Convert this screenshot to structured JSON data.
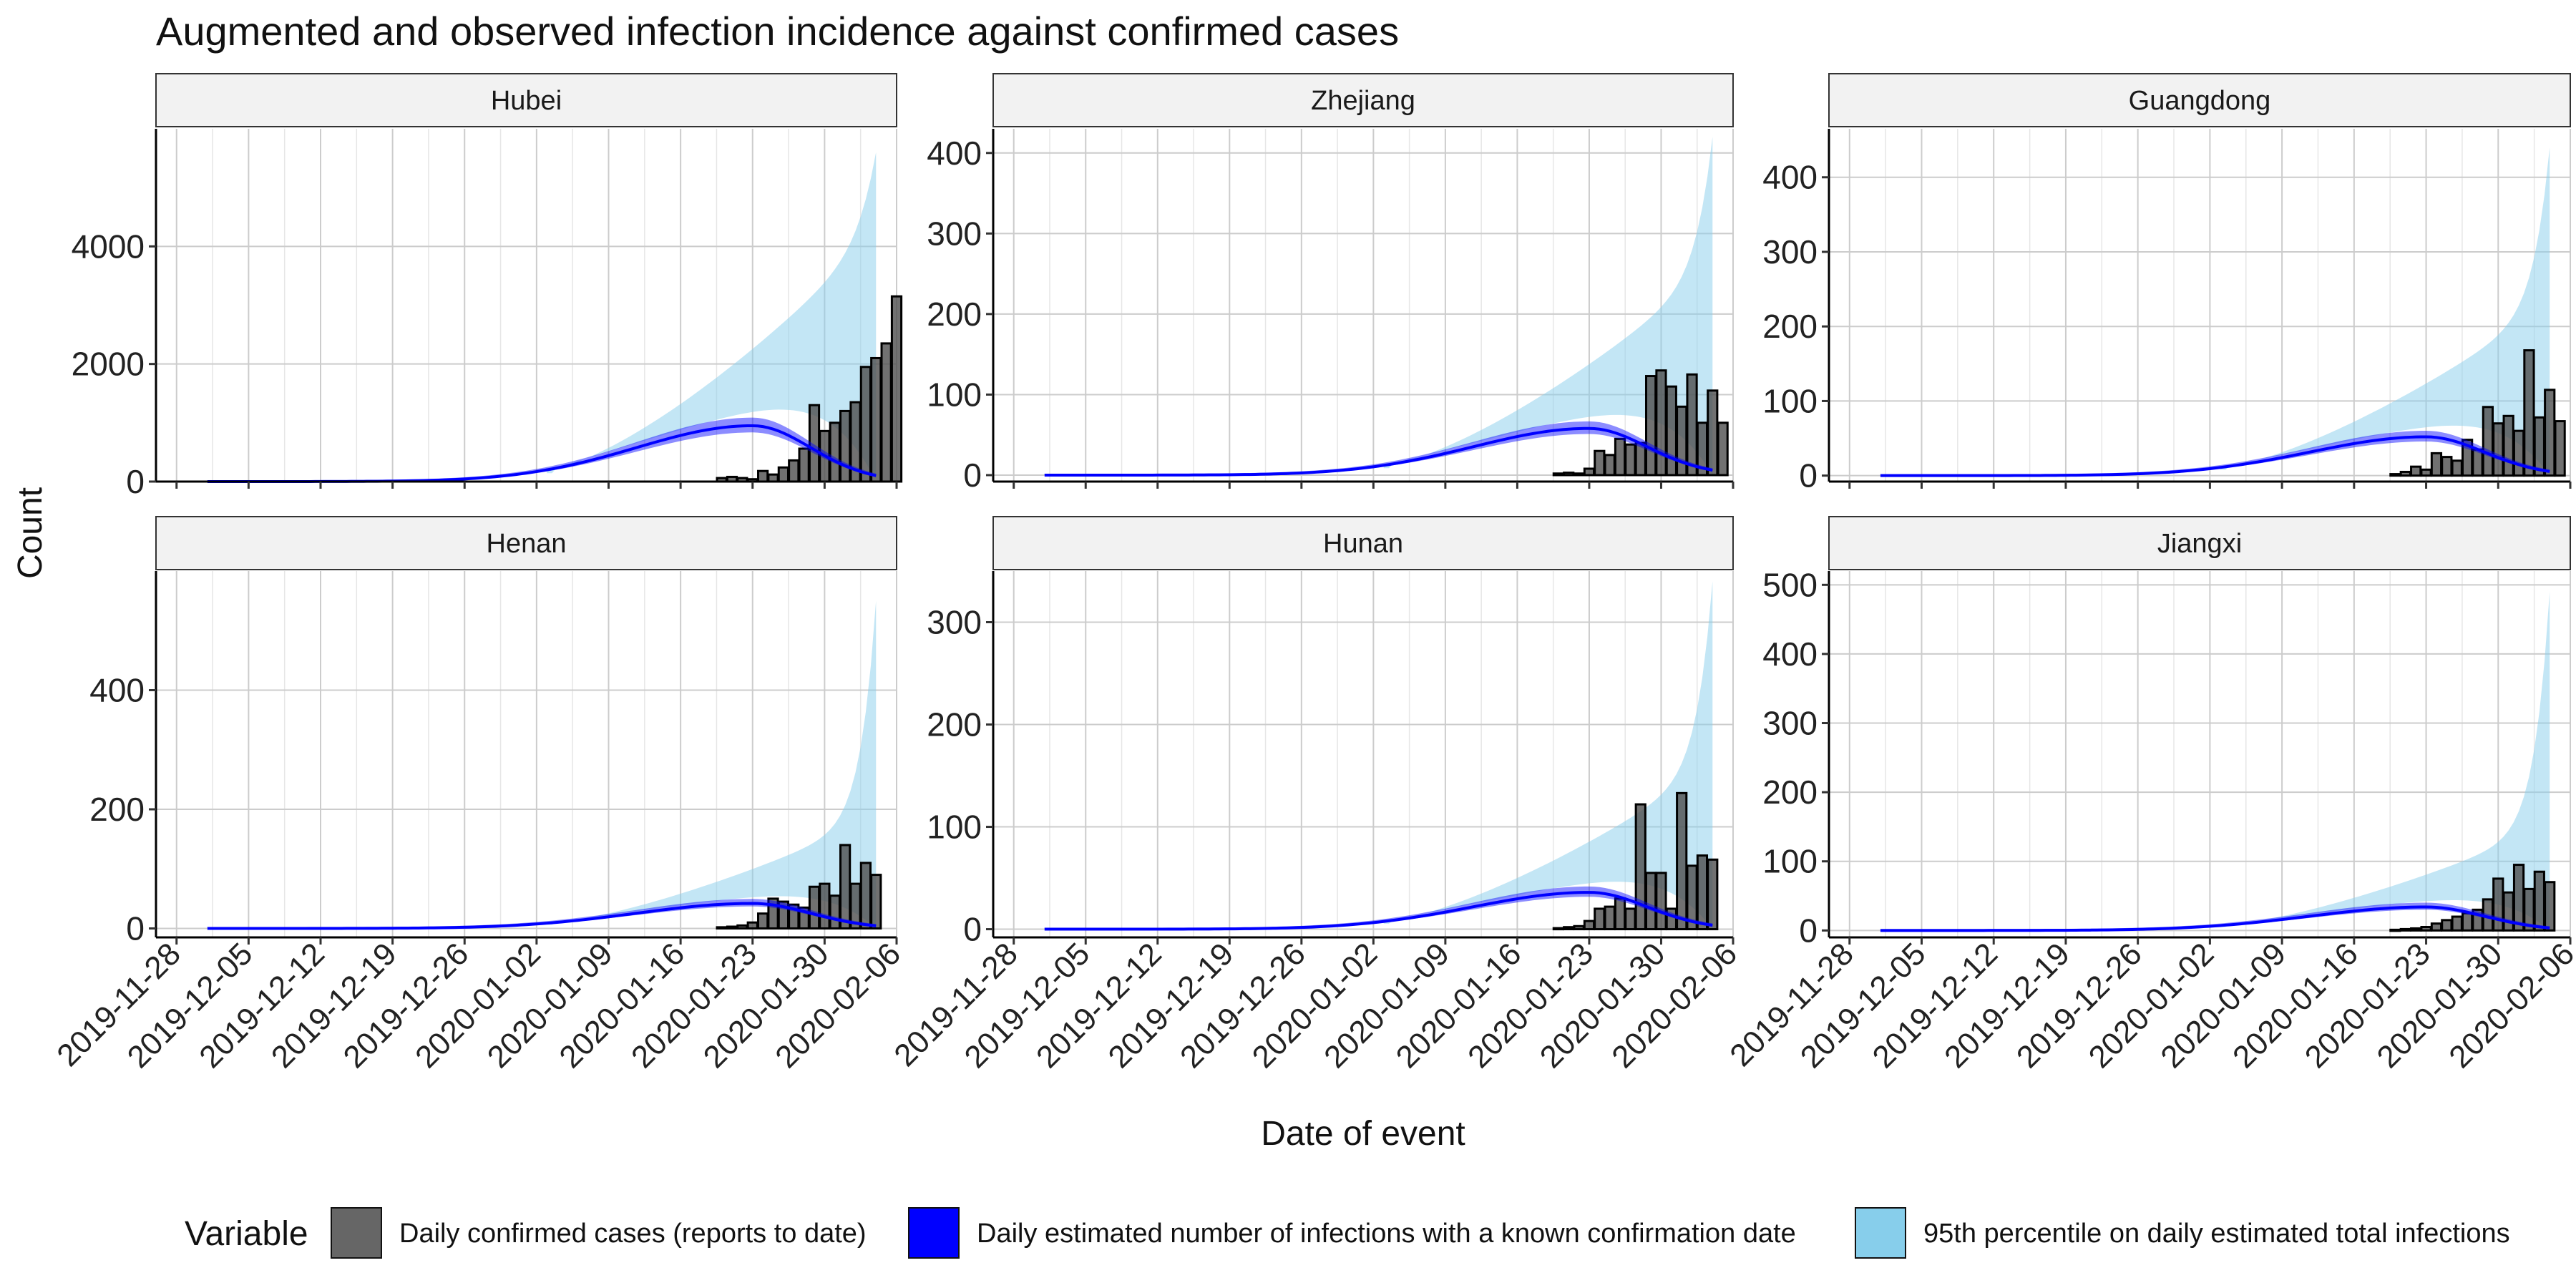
{
  "title": "Augmented and observed infection incidence against confirmed cases",
  "chart_data": {
    "type": "bar",
    "xlabel": "Date of event",
    "ylabel": "Count",
    "x_ticks": [
      "2019-11-28",
      "2019-12-05",
      "2019-12-12",
      "2019-12-19",
      "2019-12-26",
      "2020-01-02",
      "2020-01-09",
      "2020-01-16",
      "2020-01-23",
      "2020-01-30",
      "2020-02-06"
    ],
    "x_range": [
      "2019-11-26",
      "2020-02-06"
    ],
    "grid": true,
    "legend": {
      "title": "Variable",
      "position": "bottom",
      "items": [
        {
          "label": "Daily confirmed cases (reports to date)",
          "color": "#666666"
        },
        {
          "label": "Daily estimated number of infections with a known confirmation date",
          "color": "#0000ff"
        },
        {
          "label": "95th percentile on daily estimated total infections",
          "color": "#87ceeb"
        }
      ]
    },
    "panels": [
      {
        "name": "Hubei",
        "ylim": [
          0,
          6000
        ],
        "y_ticks": [
          0,
          2000,
          4000
        ],
        "bars": {
          "start": "2020-01-20",
          "values": [
            60,
            80,
            60,
            40,
            180,
            120,
            240,
            360,
            560,
            1300,
            860,
            1000,
            1200,
            1350,
            1950,
            2100,
            2350,
            3150
          ]
        },
        "estimate": {
          "peak_date": "2020-01-23",
          "peak": 950
        },
        "band": {
          "upper_end": 5600,
          "lower_end": 60
        }
      },
      {
        "name": "Zhejiang",
        "ylim": [
          -8,
          430
        ],
        "y_ticks": [
          0,
          100,
          200,
          300,
          400
        ],
        "bars": {
          "start": "2020-01-20",
          "values": [
            2,
            3,
            2,
            8,
            30,
            25,
            45,
            38,
            40,
            123,
            130,
            110,
            85,
            125,
            65,
            105,
            65
          ]
        },
        "estimate": {
          "peak_date": "2020-01-23",
          "peak": 58
        },
        "band": {
          "upper_end": 420,
          "lower_end": 1
        }
      },
      {
        "name": "Guangdong",
        "ylim": [
          -8,
          465
        ],
        "y_ticks": [
          0,
          100,
          200,
          300,
          400
        ],
        "bars": {
          "start": "2020-01-20",
          "values": [
            2,
            5,
            12,
            8,
            30,
            25,
            20,
            48,
            35,
            92,
            70,
            80,
            60,
            168,
            78,
            115,
            73
          ]
        },
        "estimate": {
          "peak_date": "2020-01-23",
          "peak": 52
        },
        "band": {
          "upper_end": 440,
          "lower_end": 1
        }
      },
      {
        "name": "Henan",
        "ylim": [
          -15,
          600
        ],
        "y_ticks": [
          0,
          200,
          400
        ],
        "bars": {
          "start": "2020-01-20",
          "values": [
            2,
            3,
            5,
            10,
            25,
            50,
            45,
            40,
            35,
            70,
            75,
            55,
            140,
            75,
            110,
            90
          ]
        },
        "estimate": {
          "peak_date": "2020-01-23",
          "peak": 42
        },
        "band": {
          "upper_end": 550,
          "lower_end": 1
        }
      },
      {
        "name": "Hunan",
        "ylim": [
          -8,
          350
        ],
        "y_ticks": [
          0,
          100,
          200,
          300
        ],
        "bars": {
          "start": "2020-01-20",
          "values": [
            1,
            2,
            3,
            8,
            20,
            22,
            30,
            20,
            122,
            55,
            55,
            20,
            133,
            62,
            72,
            68
          ]
        },
        "estimate": {
          "peak_date": "2020-01-23",
          "peak": 36
        },
        "band": {
          "upper_end": 340,
          "lower_end": 1
        }
      },
      {
        "name": "Jiangxi",
        "ylim": [
          -10,
          520
        ],
        "y_ticks": [
          0,
          100,
          200,
          300,
          400,
          500
        ],
        "bars": {
          "start": "2020-01-20",
          "values": [
            1,
            2,
            3,
            5,
            10,
            15,
            20,
            25,
            30,
            45,
            75,
            55,
            95,
            60,
            85,
            70
          ]
        },
        "estimate": {
          "peak_date": "2020-01-23",
          "peak": 34
        },
        "band": {
          "upper_end": 490,
          "lower_end": 1
        }
      }
    ]
  }
}
